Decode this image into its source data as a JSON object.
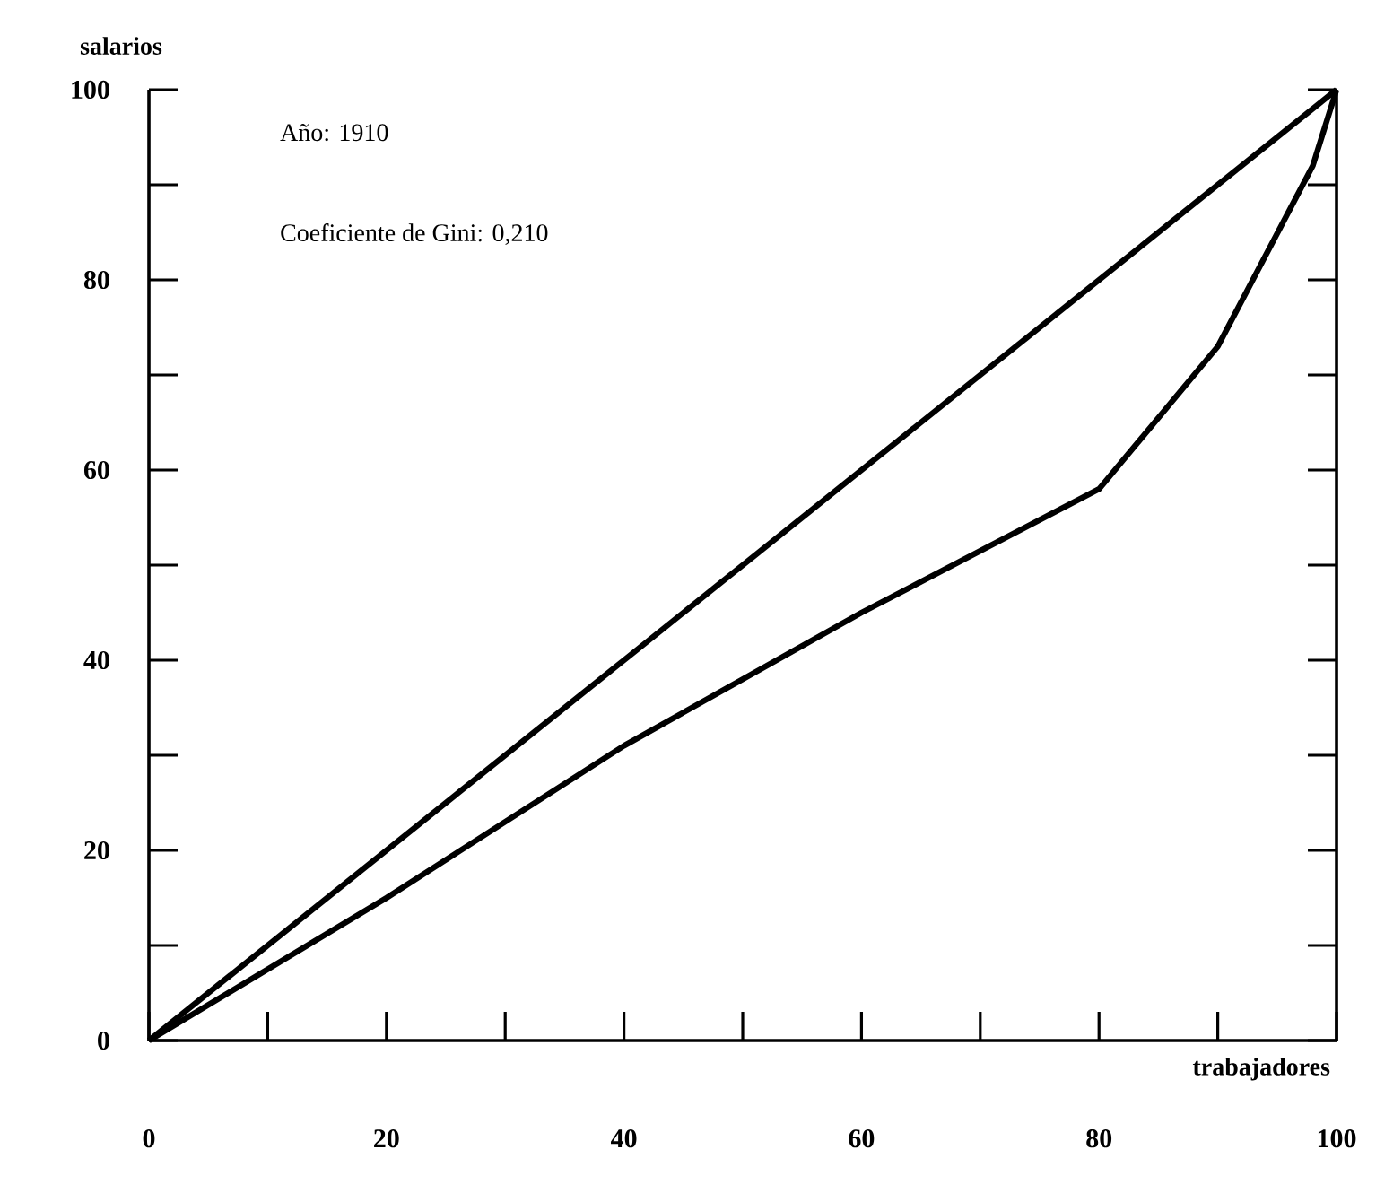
{
  "chart_data": {
    "type": "line",
    "xlabel": "trabajadores",
    "ylabel": "salarios",
    "annotations": [
      "Año: 1910",
      "Coeficiente de Gini: 0,210"
    ],
    "xlim": [
      0,
      100
    ],
    "ylim": [
      0,
      100
    ],
    "xticks": [
      0,
      {
        "value": 10,
        "label": null
      },
      20,
      {
        "value": 30,
        "label": null
      },
      40,
      {
        "value": 50,
        "label": null
      },
      60,
      {
        "value": 70,
        "label": null
      },
      80,
      {
        "value": 90,
        "label": null
      },
      100
    ],
    "yticks": [
      0,
      {
        "value": 10,
        "label": null
      },
      20,
      {
        "value": 30,
        "label": null
      },
      40,
      {
        "value": 50,
        "label": null
      },
      60,
      {
        "value": 70,
        "label": null
      },
      80,
      {
        "value": 90,
        "label": null
      },
      100
    ],
    "series": [
      {
        "color": "#000000",
        "x": [
          0,
          100
        ],
        "values": [
          0,
          100
        ]
      },
      {
        "color": "#000000",
        "x": [
          0,
          20,
          40,
          60,
          80,
          90,
          98,
          100
        ],
        "values": [
          0,
          15,
          31,
          45,
          58,
          73,
          92,
          100
        ]
      }
    ],
    "grid": false,
    "marker": "none",
    "line_style": "solid"
  }
}
